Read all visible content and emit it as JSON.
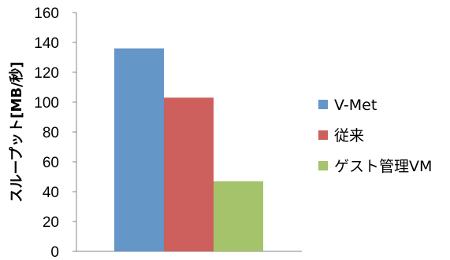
{
  "chart_data": {
    "type": "bar",
    "title": "",
    "xlabel": "",
    "ylabel": "スループット[MB/秒]",
    "ylim": [
      0,
      160
    ],
    "yticks": [
      0,
      20,
      40,
      60,
      80,
      100,
      120,
      140,
      160
    ],
    "grid": false,
    "legend_position": "right",
    "series": [
      {
        "name": "V-Met",
        "values": [
          136
        ],
        "color": "#6496c8"
      },
      {
        "name": "従来",
        "values": [
          103
        ],
        "color": "#cd5f5c"
      },
      {
        "name": "ゲスト管理VM",
        "values": [
          47
        ],
        "color": "#a4c36a"
      }
    ]
  }
}
